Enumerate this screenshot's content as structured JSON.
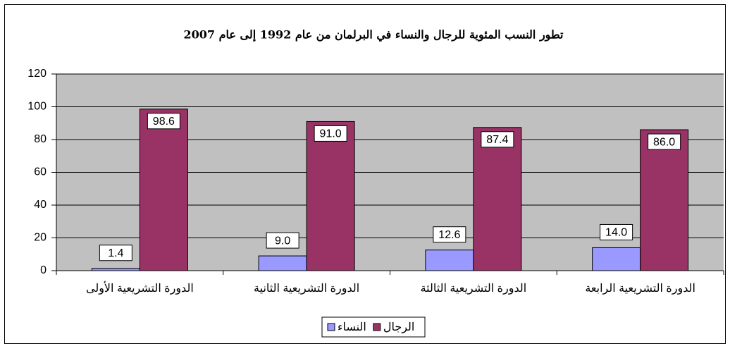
{
  "chart_data": {
    "type": "bar",
    "title": "تطور النسب المئوية للرجال والنساء في البرلمان من عام 1992 إلى عام 2007",
    "categories": [
      "الدورة التشريعية الأولى",
      "الدورة التشريعية الثانية",
      "الدورة التشريعية الثالثة",
      "الدورة التشريعية الرابعة"
    ],
    "series": [
      {
        "name": "النساء",
        "color": "#9999ff",
        "values": [
          1.4,
          9,
          12.6,
          14
        ],
        "value_labels": [
          "1.4",
          "9.0",
          "12.6",
          "14.0"
        ]
      },
      {
        "name": "الرجال",
        "color": "#993366",
        "values": [
          98.6,
          91,
          87.4,
          86
        ],
        "value_labels": [
          "98.6",
          "91.0",
          "87.4",
          "86.0"
        ]
      }
    ],
    "ylim": [
      0,
      120
    ],
    "yticks": [
      0,
      20,
      40,
      60,
      80,
      100,
      120
    ],
    "grid": true,
    "legend": "bottom"
  }
}
